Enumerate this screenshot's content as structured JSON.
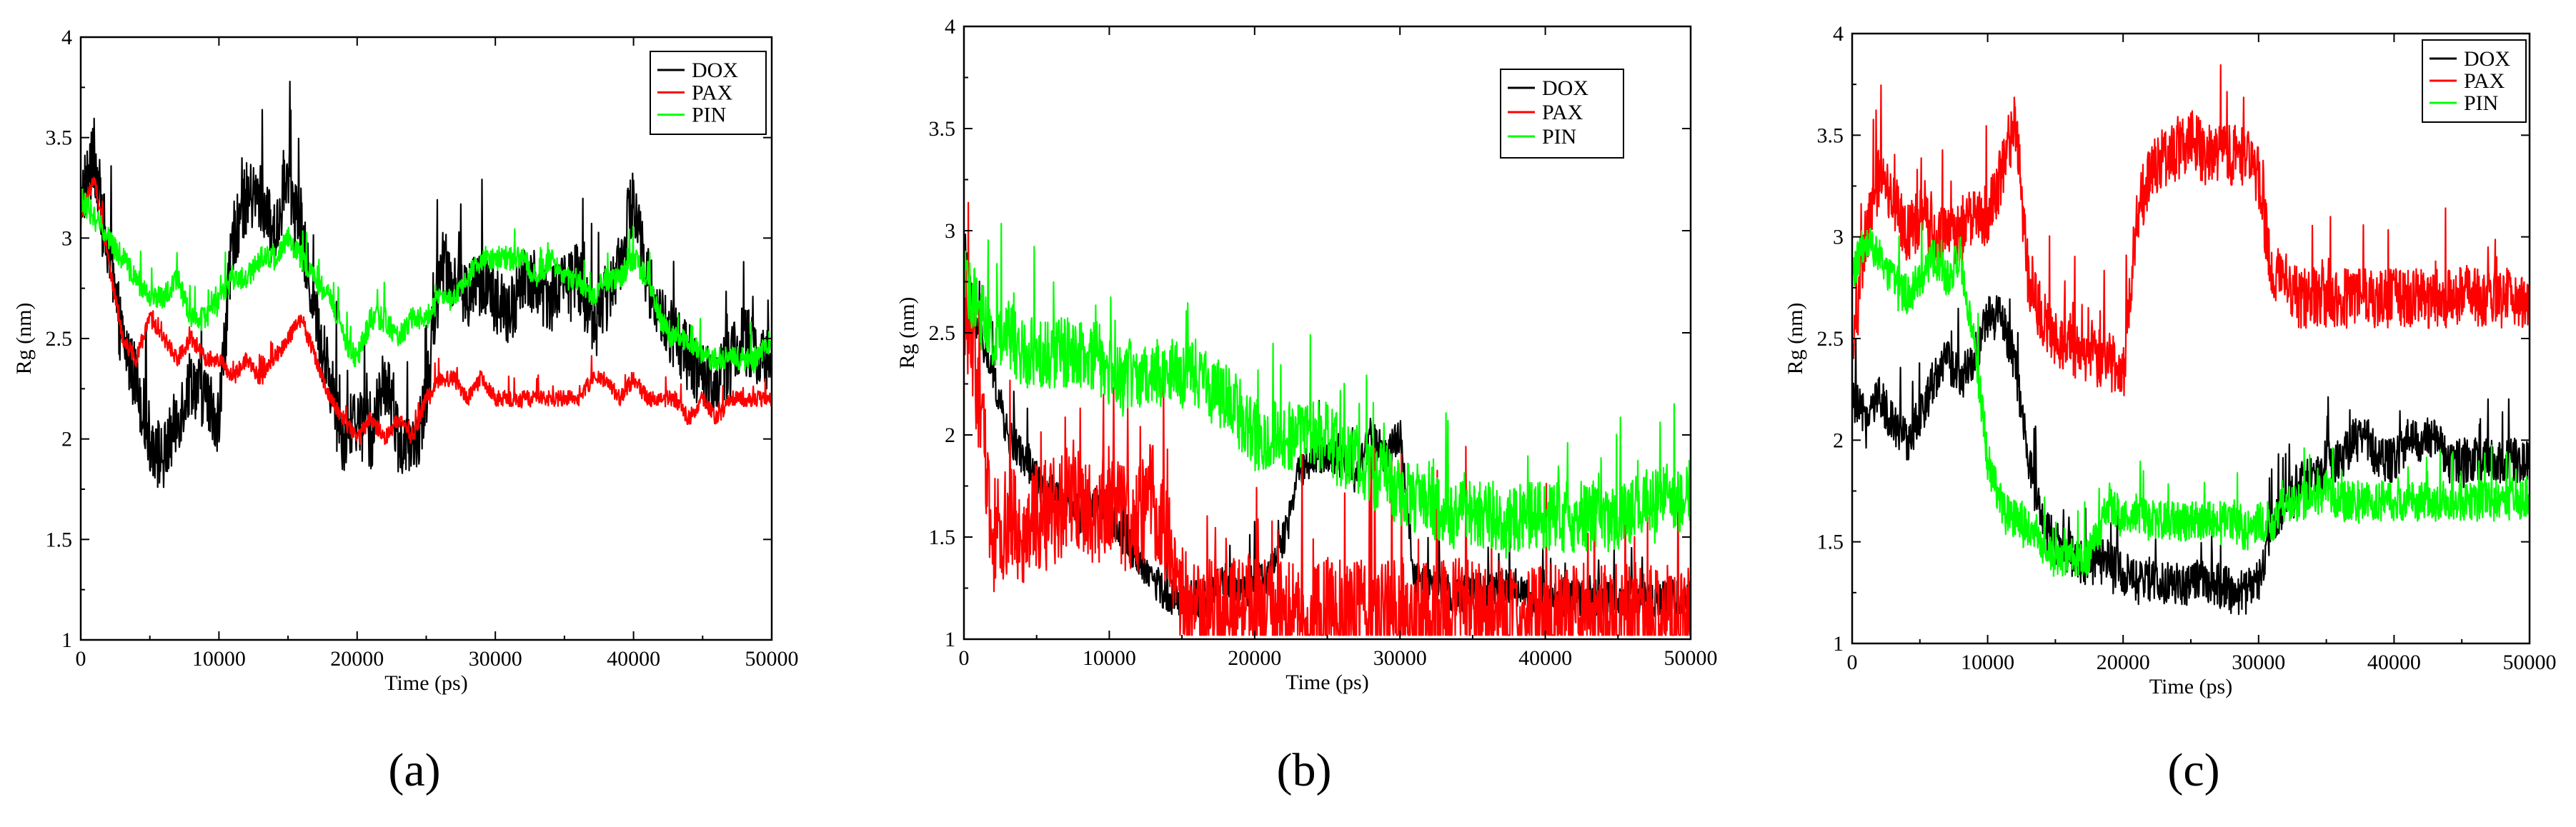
{
  "chart_data": [
    {
      "type": "line",
      "panel": "a",
      "caption": "(a)",
      "xlabel": "Time (ps)",
      "ylabel": "Rg (nm)",
      "xlim": [
        0,
        50000
      ],
      "ylim": [
        1,
        4
      ],
      "x_ticks": [
        0,
        10000,
        20000,
        30000,
        40000,
        50000
      ],
      "y_ticks": [
        1,
        1.5,
        2,
        2.5,
        3,
        3.5,
        4
      ],
      "legend_position": "top-right",
      "series": [
        {
          "name": "DOX",
          "color": "#000000",
          "noise": 0.35,
          "x": [
            0,
            1000,
            2000,
            3000,
            4000,
            5000,
            6000,
            7000,
            8000,
            9000,
            10000,
            11000,
            12000,
            13000,
            14000,
            15000,
            16000,
            17000,
            18000,
            19000,
            20000,
            21000,
            22000,
            23000,
            24000,
            25000,
            26000,
            27000,
            28000,
            29000,
            30000,
            31000,
            32000,
            33000,
            34000,
            35000,
            36000,
            37000,
            38000,
            39000,
            40000,
            41000,
            42000,
            43000,
            44000,
            45000,
            46000,
            47000,
            48000,
            49000,
            50000
          ],
          "values": [
            3.2,
            3.4,
            2.9,
            2.5,
            2.3,
            2.0,
            1.9,
            2.1,
            2.3,
            2.2,
            2.1,
            3.0,
            3.2,
            3.2,
            3.0,
            3.3,
            3.0,
            2.6,
            2.3,
            2.0,
            2.1,
            2.0,
            2.3,
            2.0,
            1.9,
            2.2,
            2.9,
            2.8,
            2.7,
            2.8,
            2.7,
            2.6,
            2.8,
            2.8,
            2.7,
            2.8,
            2.8,
            2.6,
            2.7,
            2.9,
            3.2,
            2.8,
            2.6,
            2.5,
            2.4,
            2.3,
            2.3,
            2.4,
            2.5,
            2.4,
            2.4
          ]
        },
        {
          "name": "PAX",
          "color": "#ff0000",
          "noise": 0.08,
          "x": [
            0,
            1000,
            2000,
            3000,
            4000,
            5000,
            6000,
            7000,
            8000,
            9000,
            10000,
            11000,
            12000,
            13000,
            14000,
            15000,
            16000,
            17000,
            18000,
            19000,
            20000,
            21000,
            22000,
            23000,
            24000,
            25000,
            26000,
            27000,
            28000,
            29000,
            30000,
            31000,
            32000,
            33000,
            34000,
            35000,
            36000,
            37000,
            38000,
            39000,
            40000,
            41000,
            42000,
            43000,
            44000,
            45000,
            46000,
            47000,
            48000,
            49000,
            50000
          ],
          "values": [
            3.1,
            3.3,
            2.9,
            2.5,
            2.4,
            2.6,
            2.5,
            2.4,
            2.5,
            2.4,
            2.4,
            2.3,
            2.4,
            2.3,
            2.4,
            2.5,
            2.6,
            2.4,
            2.2,
            2.1,
            2.0,
            2.1,
            2.0,
            2.1,
            2.0,
            2.2,
            2.3,
            2.3,
            2.2,
            2.3,
            2.2,
            2.2,
            2.2,
            2.2,
            2.2,
            2.2,
            2.2,
            2.3,
            2.3,
            2.2,
            2.3,
            2.2,
            2.2,
            2.2,
            2.1,
            2.2,
            2.1,
            2.2,
            2.2,
            2.2,
            2.2
          ]
        },
        {
          "name": "PIN",
          "color": "#00ff00",
          "noise": 0.12,
          "x": [
            0,
            1000,
            2000,
            3000,
            4000,
            5000,
            6000,
            7000,
            8000,
            9000,
            10000,
            11000,
            12000,
            13000,
            14000,
            15000,
            16000,
            17000,
            18000,
            19000,
            20000,
            21000,
            22000,
            23000,
            24000,
            25000,
            26000,
            27000,
            28000,
            29000,
            30000,
            31000,
            32000,
            33000,
            34000,
            35000,
            36000,
            37000,
            38000,
            39000,
            40000,
            41000,
            42000,
            43000,
            44000,
            45000,
            46000,
            47000,
            48000,
            49000,
            50000
          ],
          "values": [
            3.2,
            3.1,
            3.0,
            2.9,
            2.8,
            2.7,
            2.7,
            2.8,
            2.6,
            2.6,
            2.7,
            2.8,
            2.8,
            2.9,
            2.9,
            3.0,
            2.9,
            2.8,
            2.7,
            2.5,
            2.4,
            2.6,
            2.6,
            2.5,
            2.6,
            2.6,
            2.7,
            2.7,
            2.8,
            2.9,
            2.9,
            2.9,
            2.9,
            2.8,
            2.9,
            2.8,
            2.8,
            2.7,
            2.8,
            2.8,
            2.9,
            2.8,
            2.6,
            2.5,
            2.5,
            2.4,
            2.4,
            2.4,
            2.4,
            2.4,
            2.5
          ]
        }
      ]
    },
    {
      "type": "line",
      "panel": "b",
      "caption": "(b)",
      "xlabel": "Time (ps)",
      "ylabel": "Rg (nm)",
      "xlim": [
        0,
        50000
      ],
      "ylim": [
        1,
        4
      ],
      "x_ticks": [
        0,
        10000,
        20000,
        30000,
        40000,
        50000
      ],
      "y_ticks": [
        1,
        1.5,
        2,
        2.5,
        3,
        3.5,
        4
      ],
      "legend_position": "top-right",
      "series": [
        {
          "name": "DOX",
          "color": "#000000",
          "noise": 0.18,
          "x": [
            0,
            1000,
            2000,
            3000,
            4000,
            5000,
            6000,
            7000,
            8000,
            9000,
            10000,
            11000,
            12000,
            13000,
            14000,
            15000,
            16000,
            17000,
            18000,
            19000,
            20000,
            21000,
            22000,
            23000,
            24000,
            25000,
            26000,
            27000,
            28000,
            29000,
            30000,
            31000,
            32000,
            33000,
            34000,
            35000,
            36000,
            37000,
            38000,
            39000,
            40000,
            41000,
            42000,
            43000,
            44000,
            45000,
            46000,
            47000,
            48000,
            49000,
            50000
          ],
          "values": [
            2.9,
            2.5,
            2.3,
            2.0,
            1.9,
            1.8,
            1.7,
            1.7,
            1.6,
            1.7,
            1.6,
            1.5,
            1.4,
            1.3,
            1.2,
            1.2,
            1.2,
            1.2,
            1.3,
            1.2,
            1.3,
            1.3,
            1.5,
            1.8,
            1.9,
            1.9,
            1.9,
            1.8,
            2.0,
            1.9,
            2.0,
            1.3,
            1.25,
            1.25,
            1.2,
            1.25,
            1.25,
            1.25,
            1.25,
            1.2,
            1.2,
            1.2,
            1.2,
            1.2,
            1.2,
            1.2,
            1.2,
            1.2,
            1.2,
            1.2,
            1.2
          ]
        },
        {
          "name": "PAX",
          "color": "#ff0000",
          "noise": 0.55,
          "x": [
            0,
            1000,
            2000,
            3000,
            4000,
            5000,
            6000,
            7000,
            8000,
            9000,
            10000,
            11000,
            12000,
            13000,
            14000,
            15000,
            16000,
            17000,
            18000,
            19000,
            20000,
            21000,
            22000,
            23000,
            24000,
            25000,
            26000,
            27000,
            28000,
            29000,
            30000,
            31000,
            32000,
            33000,
            34000,
            35000,
            36000,
            37000,
            38000,
            39000,
            40000,
            41000,
            42000,
            43000,
            44000,
            45000,
            46000,
            47000,
            48000,
            49000,
            50000
          ],
          "values": [
            2.7,
            2.2,
            1.5,
            1.6,
            1.5,
            1.6,
            1.6,
            1.7,
            1.7,
            1.6,
            1.7,
            1.6,
            1.6,
            1.7,
            1.5,
            1.2,
            1.12,
            1.12,
            1.12,
            1.12,
            1.12,
            1.12,
            1.13,
            1.12,
            1.12,
            1.13,
            1.12,
            1.12,
            1.12,
            1.12,
            1.13,
            1.12,
            1.12,
            1.12,
            1.12,
            1.12,
            1.11,
            1.11,
            1.1,
            1.1,
            1.1,
            1.1,
            1.1,
            1.1,
            1.1,
            1.1,
            1.1,
            1.1,
            1.1,
            1.1,
            1.1
          ]
        },
        {
          "name": "PIN",
          "color": "#00ff00",
          "noise": 0.35,
          "x": [
            0,
            1000,
            2000,
            3000,
            4000,
            5000,
            6000,
            7000,
            8000,
            9000,
            10000,
            11000,
            12000,
            13000,
            14000,
            15000,
            16000,
            17000,
            18000,
            19000,
            20000,
            21000,
            22000,
            23000,
            24000,
            25000,
            26000,
            27000,
            28000,
            29000,
            30000,
            31000,
            32000,
            33000,
            34000,
            35000,
            36000,
            37000,
            38000,
            39000,
            40000,
            41000,
            42000,
            43000,
            44000,
            45000,
            46000,
            47000,
            48000,
            49000,
            50000
          ],
          "values": [
            2.8,
            2.6,
            2.5,
            2.5,
            2.4,
            2.4,
            2.4,
            2.4,
            2.4,
            2.4,
            2.3,
            2.3,
            2.3,
            2.3,
            2.3,
            2.3,
            2.3,
            2.2,
            2.2,
            2.1,
            2.0,
            2.0,
            2.0,
            2.0,
            2.0,
            2.0,
            1.9,
            1.9,
            1.8,
            1.8,
            1.7,
            1.7,
            1.7,
            1.6,
            1.6,
            1.6,
            1.6,
            1.6,
            1.6,
            1.6,
            1.6,
            1.6,
            1.6,
            1.6,
            1.6,
            1.6,
            1.6,
            1.7,
            1.7,
            1.7,
            1.7
          ]
        }
      ]
    },
    {
      "type": "line",
      "panel": "c",
      "caption": "(c)",
      "xlabel": "Time (ps)",
      "ylabel": "Rg (nm)",
      "xlim": [
        0,
        50000
      ],
      "ylim": [
        1,
        4
      ],
      "x_ticks": [
        0,
        10000,
        20000,
        30000,
        40000,
        50000
      ],
      "y_ticks": [
        1,
        1.5,
        2,
        2.5,
        3,
        3.5,
        4
      ],
      "legend_position": "top-right",
      "series": [
        {
          "name": "DOX",
          "color": "#000000",
          "noise": 0.22,
          "x": [
            0,
            1000,
            2000,
            3000,
            4000,
            5000,
            6000,
            7000,
            8000,
            9000,
            10000,
            11000,
            12000,
            13000,
            14000,
            15000,
            16000,
            17000,
            18000,
            19000,
            20000,
            21000,
            22000,
            23000,
            24000,
            25000,
            26000,
            27000,
            28000,
            29000,
            30000,
            31000,
            32000,
            33000,
            34000,
            35000,
            36000,
            37000,
            38000,
            39000,
            40000,
            41000,
            42000,
            43000,
            44000,
            45000,
            46000,
            47000,
            48000,
            49000,
            50000
          ],
          "values": [
            2.2,
            2.1,
            2.2,
            2.1,
            2.0,
            2.1,
            2.3,
            2.4,
            2.3,
            2.4,
            2.6,
            2.6,
            2.4,
            1.9,
            1.6,
            1.5,
            1.45,
            1.4,
            1.4,
            1.4,
            1.35,
            1.3,
            1.3,
            1.3,
            1.3,
            1.3,
            1.3,
            1.3,
            1.25,
            1.25,
            1.3,
            1.6,
            1.7,
            1.8,
            1.8,
            1.9,
            1.9,
            2.0,
            2.0,
            1.9,
            1.9,
            2.0,
            2.0,
            2.0,
            1.9,
            1.9,
            1.9,
            1.9,
            1.9,
            1.9,
            1.9
          ]
        },
        {
          "name": "PAX",
          "color": "#ff0000",
          "noise": 0.3,
          "x": [
            0,
            1000,
            2000,
            3000,
            4000,
            5000,
            6000,
            7000,
            8000,
            9000,
            10000,
            11000,
            12000,
            13000,
            14000,
            15000,
            16000,
            17000,
            18000,
            19000,
            20000,
            21000,
            22000,
            23000,
            24000,
            25000,
            26000,
            27000,
            28000,
            29000,
            30000,
            31000,
            32000,
            33000,
            34000,
            35000,
            36000,
            37000,
            38000,
            39000,
            40000,
            41000,
            42000,
            43000,
            44000,
            45000,
            46000,
            47000,
            48000,
            49000,
            50000
          ],
          "values": [
            2.4,
            3.0,
            3.3,
            3.2,
            3.0,
            3.1,
            3.0,
            3.0,
            3.0,
            3.1,
            3.1,
            3.3,
            3.6,
            2.8,
            2.6,
            2.5,
            2.5,
            2.4,
            2.4,
            2.4,
            2.3,
            3.1,
            3.3,
            3.4,
            3.4,
            3.5,
            3.4,
            3.4,
            3.4,
            3.4,
            3.3,
            2.8,
            2.8,
            2.7,
            2.7,
            2.7,
            2.7,
            2.7,
            2.7,
            2.7,
            2.7,
            2.7,
            2.7,
            2.7,
            2.7,
            2.7,
            2.7,
            2.7,
            2.7,
            2.7,
            2.7
          ]
        },
        {
          "name": "PIN",
          "color": "#00ff00",
          "noise": 0.2,
          "x": [
            0,
            1000,
            2000,
            3000,
            4000,
            5000,
            6000,
            7000,
            8000,
            9000,
            10000,
            11000,
            12000,
            13000,
            14000,
            15000,
            16000,
            17000,
            18000,
            19000,
            20000,
            21000,
            22000,
            23000,
            24000,
            25000,
            26000,
            27000,
            28000,
            29000,
            30000,
            31000,
            32000,
            33000,
            34000,
            35000,
            36000,
            37000,
            38000,
            39000,
            40000,
            41000,
            42000,
            43000,
            44000,
            45000,
            46000,
            47000,
            48000,
            49000,
            50000
          ],
          "values": [
            2.8,
            3.0,
            2.9,
            2.8,
            2.7,
            2.8,
            2.9,
            2.8,
            2.9,
            2.5,
            1.9,
            1.7,
            1.6,
            1.6,
            1.5,
            1.4,
            1.45,
            1.4,
            1.5,
            1.7,
            1.6,
            1.65,
            1.6,
            1.6,
            1.6,
            1.6,
            1.6,
            1.6,
            1.6,
            1.55,
            1.6,
            1.6,
            1.7,
            1.7,
            1.7,
            1.75,
            1.7,
            1.7,
            1.7,
            1.7,
            1.7,
            1.7,
            1.7,
            1.7,
            1.7,
            1.7,
            1.7,
            1.7,
            1.7,
            1.7,
            1.7
          ]
        }
      ]
    }
  ]
}
